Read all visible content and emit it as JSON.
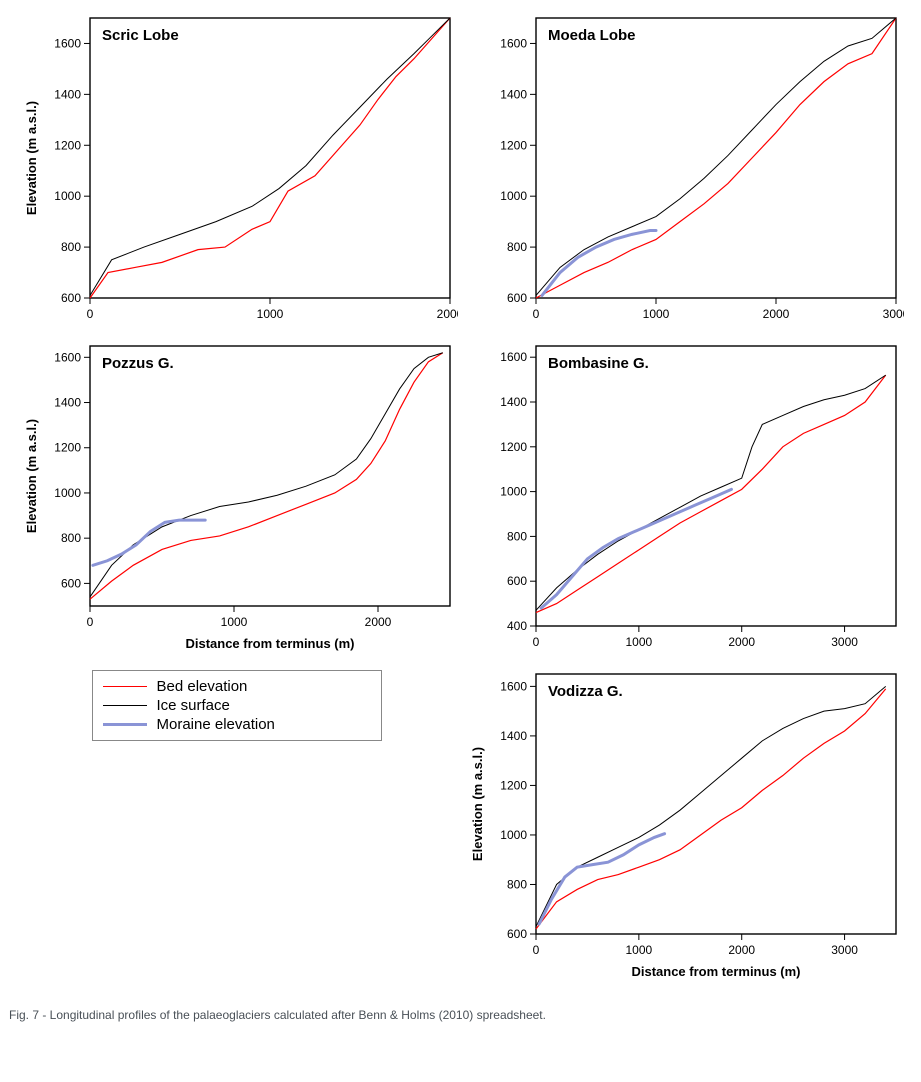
{
  "colors": {
    "bed": "#ff0000",
    "ice": "#000000",
    "moraine": "#8a94d6",
    "axis": "#000000",
    "background": "#ffffff"
  },
  "line_widths": {
    "bed": 1.2,
    "ice": 1.0,
    "moraine": 3.0
  },
  "font": {
    "tick_size": 12,
    "label_size": 13,
    "title_size": 15
  },
  "caption": "Fig. 7 - Longitudinal profiles of the palaeoglaciers calculated after Benn & Holms (2010) spreadsheet.",
  "legend": {
    "items": [
      {
        "label": "Bed elevation",
        "color": "#ff0000",
        "width": 1.2
      },
      {
        "label": "Ice surface",
        "color": "#000000",
        "width": 1.0
      },
      {
        "label": "Moraine elevation",
        "color": "#8a94d6",
        "width": 3.0
      }
    ]
  },
  "axis_labels": {
    "x": "Distance from terminus (m)",
    "y": "Elevation (m a.s.l.)"
  },
  "charts": [
    {
      "id": "scric",
      "title": "Scric Lobe",
      "xlim": [
        0,
        2000
      ],
      "xticks": [
        0,
        1000,
        2000
      ],
      "ylim": [
        600,
        1700
      ],
      "yticks": [
        600,
        800,
        1000,
        1200,
        1400,
        1600
      ],
      "show_xlabel": false,
      "show_ylabel": true,
      "bed": [
        [
          0,
          600
        ],
        [
          100,
          700
        ],
        [
          250,
          720
        ],
        [
          400,
          740
        ],
        [
          600,
          790
        ],
        [
          750,
          800
        ],
        [
          900,
          870
        ],
        [
          1000,
          900
        ],
        [
          1100,
          1020
        ],
        [
          1250,
          1080
        ],
        [
          1400,
          1200
        ],
        [
          1500,
          1280
        ],
        [
          1600,
          1380
        ],
        [
          1700,
          1470
        ],
        [
          1800,
          1540
        ],
        [
          1900,
          1620
        ],
        [
          2000,
          1700
        ]
      ],
      "ice": [
        [
          0,
          610
        ],
        [
          120,
          750
        ],
        [
          300,
          800
        ],
        [
          500,
          850
        ],
        [
          700,
          900
        ],
        [
          900,
          960
        ],
        [
          1050,
          1030
        ],
        [
          1200,
          1120
        ],
        [
          1350,
          1240
        ],
        [
          1500,
          1350
        ],
        [
          1650,
          1460
        ],
        [
          1800,
          1560
        ],
        [
          1900,
          1630
        ],
        [
          2000,
          1700
        ]
      ],
      "moraine": null
    },
    {
      "id": "moeda",
      "title": "Moeda Lobe",
      "xlim": [
        0,
        3000
      ],
      "xticks": [
        0,
        1000,
        2000,
        3000
      ],
      "ylim": [
        600,
        1700
      ],
      "yticks": [
        600,
        800,
        1000,
        1200,
        1400,
        1600
      ],
      "show_xlabel": false,
      "show_ylabel": false,
      "bed": [
        [
          0,
          600
        ],
        [
          200,
          650
        ],
        [
          400,
          700
        ],
        [
          600,
          740
        ],
        [
          800,
          790
        ],
        [
          1000,
          830
        ],
        [
          1200,
          900
        ],
        [
          1400,
          970
        ],
        [
          1600,
          1050
        ],
        [
          1800,
          1150
        ],
        [
          2000,
          1250
        ],
        [
          2200,
          1360
        ],
        [
          2400,
          1450
        ],
        [
          2600,
          1520
        ],
        [
          2800,
          1560
        ],
        [
          3000,
          1700
        ]
      ],
      "ice": [
        [
          0,
          610
        ],
        [
          200,
          720
        ],
        [
          400,
          790
        ],
        [
          600,
          840
        ],
        [
          800,
          880
        ],
        [
          1000,
          920
        ],
        [
          1200,
          990
        ],
        [
          1400,
          1070
        ],
        [
          1600,
          1160
        ],
        [
          1800,
          1260
        ],
        [
          2000,
          1360
        ],
        [
          2200,
          1450
        ],
        [
          2400,
          1530
        ],
        [
          2600,
          1590
        ],
        [
          2800,
          1620
        ],
        [
          3000,
          1700
        ]
      ],
      "moraine": [
        [
          50,
          610
        ],
        [
          200,
          700
        ],
        [
          350,
          760
        ],
        [
          500,
          800
        ],
        [
          650,
          830
        ],
        [
          800,
          850
        ],
        [
          950,
          865
        ],
        [
          1000,
          865
        ]
      ]
    },
    {
      "id": "pozzus",
      "title": "Pozzus G.",
      "xlim": [
        0,
        2500
      ],
      "xticks": [
        0,
        1000,
        2000
      ],
      "ylim": [
        500,
        1650
      ],
      "yticks": [
        600,
        800,
        1000,
        1200,
        1400,
        1600
      ],
      "show_xlabel": true,
      "show_ylabel": true,
      "bed": [
        [
          0,
          530
        ],
        [
          150,
          610
        ],
        [
          300,
          680
        ],
        [
          500,
          750
        ],
        [
          700,
          790
        ],
        [
          900,
          810
        ],
        [
          1100,
          850
        ],
        [
          1300,
          900
        ],
        [
          1500,
          950
        ],
        [
          1700,
          1000
        ],
        [
          1850,
          1060
        ],
        [
          1950,
          1130
        ],
        [
          2050,
          1230
        ],
        [
          2150,
          1370
        ],
        [
          2250,
          1490
        ],
        [
          2350,
          1580
        ],
        [
          2450,
          1620
        ]
      ],
      "ice": [
        [
          0,
          540
        ],
        [
          150,
          680
        ],
        [
          300,
          770
        ],
        [
          500,
          850
        ],
        [
          700,
          900
        ],
        [
          900,
          940
        ],
        [
          1100,
          960
        ],
        [
          1300,
          990
        ],
        [
          1500,
          1030
        ],
        [
          1700,
          1080
        ],
        [
          1850,
          1150
        ],
        [
          1950,
          1240
        ],
        [
          2050,
          1350
        ],
        [
          2150,
          1460
        ],
        [
          2250,
          1550
        ],
        [
          2350,
          1600
        ],
        [
          2450,
          1620
        ]
      ],
      "moraine": [
        [
          20,
          680
        ],
        [
          120,
          700
        ],
        [
          220,
          730
        ],
        [
          320,
          770
        ],
        [
          420,
          830
        ],
        [
          520,
          870
        ],
        [
          620,
          880
        ],
        [
          720,
          880
        ],
        [
          800,
          880
        ]
      ]
    },
    {
      "id": "bombasine",
      "title": "Bombasine G.",
      "xlim": [
        0,
        3500
      ],
      "xticks": [
        0,
        1000,
        2000,
        3000
      ],
      "ylim": [
        400,
        1650
      ],
      "yticks": [
        400,
        600,
        800,
        1000,
        1200,
        1400,
        1600
      ],
      "show_xlabel": false,
      "show_ylabel": false,
      "bed": [
        [
          0,
          460
        ],
        [
          200,
          500
        ],
        [
          400,
          560
        ],
        [
          600,
          620
        ],
        [
          800,
          680
        ],
        [
          1000,
          740
        ],
        [
          1200,
          800
        ],
        [
          1400,
          860
        ],
        [
          1600,
          910
        ],
        [
          1800,
          960
        ],
        [
          2000,
          1010
        ],
        [
          2200,
          1100
        ],
        [
          2400,
          1200
        ],
        [
          2600,
          1260
        ],
        [
          2800,
          1300
        ],
        [
          3000,
          1340
        ],
        [
          3200,
          1400
        ],
        [
          3400,
          1520
        ]
      ],
      "ice": [
        [
          0,
          470
        ],
        [
          200,
          570
        ],
        [
          400,
          650
        ],
        [
          600,
          720
        ],
        [
          800,
          780
        ],
        [
          1000,
          830
        ],
        [
          1200,
          880
        ],
        [
          1400,
          930
        ],
        [
          1600,
          980
        ],
        [
          1800,
          1020
        ],
        [
          2000,
          1060
        ],
        [
          2100,
          1200
        ],
        [
          2200,
          1300
        ],
        [
          2400,
          1340
        ],
        [
          2600,
          1380
        ],
        [
          2800,
          1410
        ],
        [
          3000,
          1430
        ],
        [
          3200,
          1460
        ],
        [
          3400,
          1520
        ]
      ],
      "moraine": [
        [
          50,
          480
        ],
        [
          200,
          540
        ],
        [
          350,
          620
        ],
        [
          500,
          700
        ],
        [
          650,
          750
        ],
        [
          800,
          790
        ],
        [
          950,
          820
        ],
        [
          1100,
          850
        ],
        [
          1250,
          880
        ],
        [
          1400,
          910
        ],
        [
          1550,
          940
        ],
        [
          1700,
          970
        ],
        [
          1850,
          1000
        ],
        [
          1900,
          1010
        ]
      ]
    },
    {
      "id": "vodizza",
      "title": "Vodizza G.",
      "xlim": [
        0,
        3500
      ],
      "xticks": [
        0,
        1000,
        2000,
        3000
      ],
      "ylim": [
        600,
        1650
      ],
      "yticks": [
        600,
        800,
        1000,
        1200,
        1400,
        1600
      ],
      "show_xlabel": true,
      "show_ylabel": true,
      "bed": [
        [
          0,
          620
        ],
        [
          200,
          730
        ],
        [
          400,
          780
        ],
        [
          600,
          820
        ],
        [
          800,
          840
        ],
        [
          1000,
          870
        ],
        [
          1200,
          900
        ],
        [
          1400,
          940
        ],
        [
          1600,
          1000
        ],
        [
          1800,
          1060
        ],
        [
          2000,
          1110
        ],
        [
          2200,
          1180
        ],
        [
          2400,
          1240
        ],
        [
          2600,
          1310
        ],
        [
          2800,
          1370
        ],
        [
          3000,
          1420
        ],
        [
          3200,
          1490
        ],
        [
          3400,
          1590
        ]
      ],
      "ice": [
        [
          0,
          630
        ],
        [
          200,
          800
        ],
        [
          400,
          870
        ],
        [
          600,
          910
        ],
        [
          800,
          950
        ],
        [
          1000,
          990
        ],
        [
          1200,
          1040
        ],
        [
          1400,
          1100
        ],
        [
          1600,
          1170
        ],
        [
          1800,
          1240
        ],
        [
          2000,
          1310
        ],
        [
          2200,
          1380
        ],
        [
          2400,
          1430
        ],
        [
          2600,
          1470
        ],
        [
          2800,
          1500
        ],
        [
          3000,
          1510
        ],
        [
          3200,
          1530
        ],
        [
          3400,
          1600
        ]
      ],
      "moraine": [
        [
          30,
          640
        ],
        [
          150,
          740
        ],
        [
          280,
          830
        ],
        [
          400,
          870
        ],
        [
          550,
          880
        ],
        [
          700,
          890
        ],
        [
          850,
          920
        ],
        [
          1000,
          960
        ],
        [
          1150,
          990
        ],
        [
          1250,
          1005
        ]
      ]
    }
  ]
}
